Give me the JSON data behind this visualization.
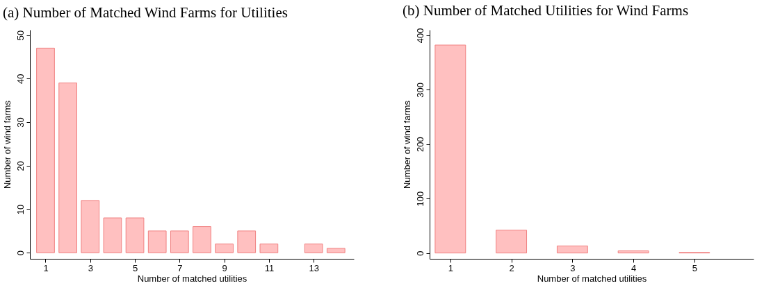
{
  "chart_data": [
    {
      "type": "bar",
      "title": "(a) Number of Matched Wind Farms for Utilities",
      "xlabel": "Number of matched utilities",
      "ylabel": "Number of wind farms",
      "x": [
        1,
        2,
        3,
        4,
        5,
        6,
        7,
        8,
        9,
        10,
        11,
        13,
        14
      ],
      "series": [
        {
          "color": "#ffc0c0",
          "values": [
            47,
            39,
            12,
            8,
            8,
            5,
            5,
            6,
            2,
            5,
            2,
            2,
            1
          ]
        }
      ],
      "xlim": [
        0.3,
        14.8
      ],
      "xticks": [
        1,
        3,
        5,
        7,
        9,
        11,
        13
      ],
      "ylim": [
        -1.4,
        51.2
      ],
      "yticks": [
        0,
        10,
        20,
        30,
        40,
        50
      ],
      "grid": false
    },
    {
      "type": "bar",
      "title": "(b) Number of Matched Utilities for Wind Farms",
      "xlabel": "Number of matched utilities",
      "ylabel": "Number of wind farms",
      "x": [
        1,
        2,
        3,
        4,
        5
      ],
      "series": [
        {
          "color": "#ffc0c0",
          "values": [
            382,
            42,
            13,
            4,
            1
          ]
        }
      ],
      "xlim": [
        0.66,
        5.97
      ],
      "xticks": [
        1,
        2,
        3,
        4,
        5
      ],
      "ylim": [
        -10.7,
        410
      ],
      "yticks": [
        0,
        100,
        200,
        300,
        400
      ],
      "grid": false
    }
  ]
}
